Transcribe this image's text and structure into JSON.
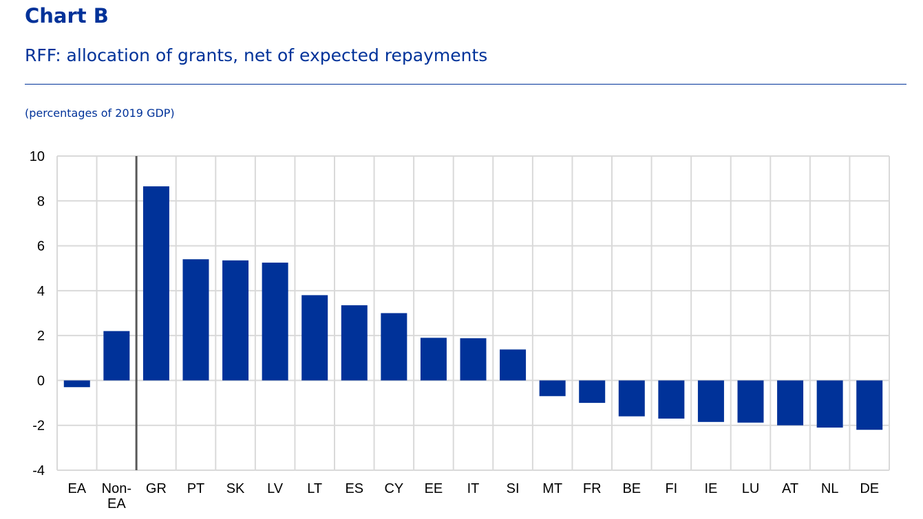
{
  "header": {
    "chart_label": "Chart B",
    "title": "RFF: allocation of grants, net of expected repayments",
    "units": "(percentages of 2019 GDP)"
  },
  "colors": {
    "bar": "#003299",
    "grid": "#d9d9d9",
    "separator": "#595959",
    "text_accent": "#003299"
  },
  "chart_data": {
    "type": "bar",
    "categories": [
      "EA",
      "Non-\nEA",
      "GR",
      "PT",
      "SK",
      "LV",
      "LT",
      "ES",
      "CY",
      "EE",
      "IT",
      "SI",
      "MT",
      "FR",
      "BE",
      "FI",
      "IE",
      "LU",
      "AT",
      "NL",
      "DE"
    ],
    "values": [
      -0.3,
      2.2,
      8.65,
      5.4,
      5.35,
      5.25,
      3.8,
      3.35,
      3.0,
      1.9,
      1.88,
      1.38,
      -0.7,
      -1.0,
      -1.6,
      -1.7,
      -1.85,
      -1.88,
      -2.0,
      -2.1,
      -2.2
    ],
    "ylim": [
      -4,
      10
    ],
    "yticks": [
      -4,
      -2,
      0,
      2,
      4,
      6,
      8,
      10
    ],
    "separator_after_index": 1,
    "grid": true,
    "legend": "none",
    "title": "",
    "xlabel": "",
    "ylabel": ""
  }
}
